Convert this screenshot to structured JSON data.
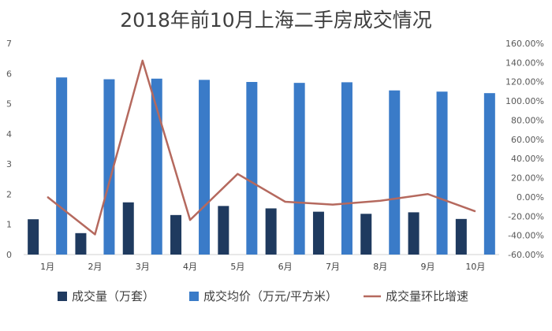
{
  "chart_data": {
    "type": "bar",
    "title": "2018年前10月上海二手房成交情况",
    "categories": [
      "1月",
      "2月",
      "3月",
      "4月",
      "5月",
      "6月",
      "7月",
      "8月",
      "9月",
      "10月"
    ],
    "series": [
      {
        "name": "成交量（万套）",
        "type": "bar",
        "axis": "left",
        "color": "#1f3a5f",
        "values": [
          1.17,
          0.71,
          1.73,
          1.31,
          1.61,
          1.53,
          1.42,
          1.35,
          1.4,
          1.18
        ]
      },
      {
        "name": "成交均价（万元/平方米）",
        "type": "bar",
        "axis": "left",
        "color": "#3a7bc8",
        "values": [
          5.87,
          5.81,
          5.83,
          5.79,
          5.72,
          5.69,
          5.71,
          5.44,
          5.4,
          5.35
        ]
      },
      {
        "name": "成交量环比增速",
        "type": "line",
        "axis": "right",
        "color": "#b5695e",
        "values": [
          0.0,
          -39.0,
          142.0,
          -24.0,
          24.0,
          -5.0,
          -8.0,
          -4.0,
          3.0,
          -15.0
        ]
      }
    ],
    "y_left": {
      "min": 0,
      "max": 7,
      "ticks": [
        "0",
        "1",
        "2",
        "3",
        "4",
        "5",
        "6",
        "7"
      ]
    },
    "y_right": {
      "min": -60,
      "max": 160,
      "ticks": [
        "-60.00%",
        "-40.00%",
        "-20.00%",
        "0.00%",
        "20.00%",
        "40.00%",
        "60.00%",
        "80.00%",
        "100.00%",
        "120.00%",
        "140.00%",
        "160.00%"
      ]
    },
    "grid": false,
    "legend_position": "bottom"
  }
}
